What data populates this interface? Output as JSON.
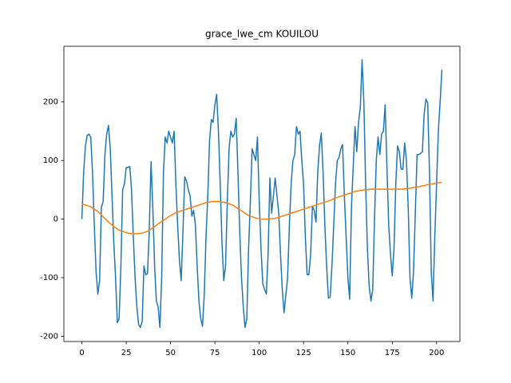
{
  "chart_data": {
    "type": "line",
    "title": "grace_lwe_cm KOUILOU",
    "xlim": [
      -10.15,
      213.15
    ],
    "xticks": [
      0,
      25,
      50,
      75,
      100,
      125,
      150,
      175,
      200
    ],
    "ylim": [
      -209,
      295
    ],
    "yticks": [
      -200,
      -100,
      0,
      100,
      200
    ],
    "series": [
      {
        "color": "#1f77b4",
        "values": [
          0,
          80,
          125,
          143,
          145,
          140,
          80,
          -10,
          -90,
          -128,
          -105,
          20,
          30,
          110,
          145,
          160,
          120,
          40,
          -40,
          -100,
          -177,
          -170,
          -80,
          50,
          60,
          88,
          88,
          90,
          50,
          -30,
          -100,
          -150,
          -180,
          -185,
          -175,
          -80,
          -95,
          -93,
          -20,
          98,
          20,
          -80,
          -140,
          -150,
          -185,
          -100,
          80,
          140,
          130,
          150,
          140,
          130,
          150,
          60,
          -10,
          -70,
          -105,
          -20,
          72,
          65,
          50,
          40,
          5,
          15,
          -10,
          -80,
          -140,
          -170,
          -183,
          -130,
          -30,
          40,
          135,
          170,
          165,
          195,
          213,
          150,
          60,
          -40,
          -105,
          -80,
          30,
          120,
          150,
          140,
          145,
          172,
          80,
          -20,
          -100,
          -150,
          -185,
          -170,
          -50,
          30,
          120,
          110,
          100,
          140,
          30,
          -50,
          -110,
          -120,
          -128,
          -60,
          70,
          10,
          40,
          70,
          40,
          10,
          -60,
          -120,
          -160,
          -130,
          -100,
          -10,
          60,
          100,
          110,
          158,
          145,
          150,
          100,
          60,
          -30,
          -95,
          -95,
          -60,
          22,
          15,
          -5,
          80,
          125,
          147,
          80,
          -10,
          -80,
          -135,
          -133,
          -80,
          -10,
          60,
          100,
          105,
          120,
          127,
          40,
          -30,
          -100,
          -137,
          20,
          90,
          158,
          115,
          165,
          190,
          272,
          200,
          60,
          -50,
          -115,
          -140,
          -120,
          0,
          100,
          140,
          110,
          145,
          150,
          195,
          90,
          -10,
          -60,
          -97,
          -50,
          60,
          125,
          115,
          85,
          85,
          130,
          100,
          20,
          -100,
          -135,
          -90,
          10,
          110,
          110,
          112,
          115,
          180,
          205,
          198,
          80,
          -90,
          -140,
          -30,
          60,
          150,
          200,
          255
        ]
      },
      {
        "color": "#ff7f0e",
        "values": [
          25,
          25,
          24,
          23,
          22,
          21,
          19,
          17,
          15,
          13,
          10,
          7,
          4,
          1,
          -2,
          -5,
          -8,
          -10,
          -13,
          -15,
          -17,
          -19,
          -20,
          -21,
          -22,
          -23,
          -24,
          -24,
          -25,
          -25,
          -25,
          -25,
          -25,
          -24,
          -24,
          -23,
          -22,
          -21,
          -19,
          -17,
          -15,
          -13,
          -11,
          -8,
          -6,
          -4,
          -2,
          0,
          2,
          4,
          6,
          8,
          9,
          11,
          12,
          13,
          14,
          15,
          16,
          17,
          18,
          19,
          20,
          21,
          22,
          23,
          24,
          25,
          26,
          27,
          28,
          29,
          29,
          30,
          30,
          30,
          30,
          30,
          30,
          29,
          29,
          28,
          27,
          26,
          25,
          24,
          22,
          20,
          18,
          16,
          14,
          12,
          10,
          8,
          6,
          5,
          4,
          3,
          2,
          1,
          1,
          0,
          0,
          0,
          0,
          0,
          0,
          1,
          1,
          1,
          2,
          3,
          4,
          5,
          6,
          7,
          8,
          9,
          10,
          11,
          12,
          13,
          14,
          15,
          16,
          17,
          18,
          19,
          20,
          21,
          22,
          23,
          24,
          25,
          26,
          27,
          28,
          29,
          30,
          31,
          32,
          33,
          35,
          36,
          37,
          38,
          39,
          40,
          41,
          42,
          43,
          44,
          45,
          46,
          47,
          48,
          48,
          49,
          49,
          50,
          50,
          50,
          51,
          51,
          51,
          51,
          51,
          51,
          51,
          51,
          51,
          51,
          51,
          51,
          51,
          51,
          51,
          51,
          51,
          51,
          51,
          51,
          52,
          52,
          52,
          53,
          53,
          54,
          54,
          55,
          55,
          56,
          57,
          57,
          58,
          59,
          59,
          60,
          60,
          61,
          61,
          62,
          62,
          62
        ]
      }
    ]
  }
}
